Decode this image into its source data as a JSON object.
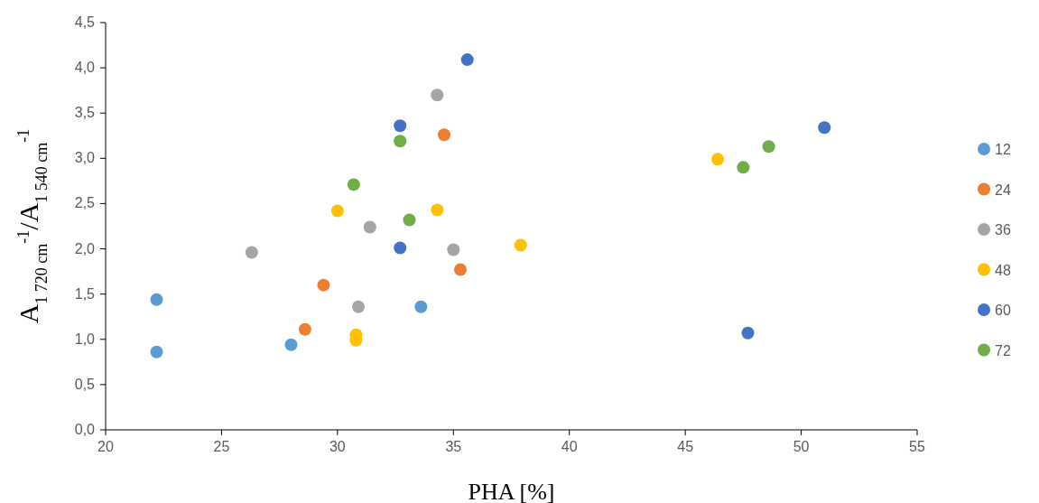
{
  "chart_data": {
    "type": "scatter",
    "xlabel": "PHA [%]",
    "ylabel": "A$_{1 720 cm}$$^{-1}$/A$_{1 540 cm}$$^{-1}$",
    "xlim": [
      20,
      55
    ],
    "xticks": [
      20,
      25,
      30,
      35,
      40,
      45,
      50,
      55
    ],
    "ylim": [
      0,
      4.5
    ],
    "yticks": [
      {
        "value": 0,
        "label": "0,0"
      },
      {
        "value": 0.5,
        "label": "0,5"
      },
      {
        "value": 1,
        "label": "1,0"
      },
      {
        "value": 1.5,
        "label": "1,5"
      },
      {
        "value": 2,
        "label": "2,0"
      },
      {
        "value": 2.5,
        "label": "2,5"
      },
      {
        "value": 3,
        "label": "3,0"
      },
      {
        "value": 3.5,
        "label": "3,5"
      },
      {
        "value": 4,
        "label": "4,0"
      },
      {
        "value": 4.5,
        "label": "4,5"
      }
    ],
    "grid": false,
    "legend": "right",
    "marker": "circle",
    "series": [
      {
        "name": "12",
        "color": "#5b9bd5",
        "x": [
          22.2,
          22.2,
          28.0,
          33.6
        ],
        "values": [
          1.44,
          0.86,
          0.94,
          1.36
        ]
      },
      {
        "name": "24",
        "color": "#ed7d31",
        "x": [
          28.6,
          29.4,
          34.6,
          35.3
        ],
        "values": [
          1.11,
          1.6,
          3.26,
          1.77
        ]
      },
      {
        "name": "36",
        "color": "#a5a5a5",
        "x": [
          26.3,
          30.9,
          31.4,
          34.3,
          35.0
        ],
        "values": [
          1.96,
          1.36,
          2.24,
          3.7,
          1.99
        ]
      },
      {
        "name": "48",
        "color": "#ffc000",
        "x": [
          30.0,
          30.8,
          30.8,
          34.3,
          37.9,
          46.4
        ],
        "values": [
          2.42,
          1.05,
          0.99,
          2.43,
          2.04,
          2.99
        ]
      },
      {
        "name": "60",
        "color": "#4472c4",
        "x": [
          32.7,
          32.7,
          35.6,
          47.7,
          51.0
        ],
        "values": [
          3.36,
          2.01,
          4.09,
          1.07,
          3.34
        ]
      },
      {
        "name": "72",
        "color": "#70ad47",
        "x": [
          30.7,
          32.7,
          33.1,
          47.5,
          48.6
        ],
        "values": [
          2.71,
          3.19,
          2.32,
          2.9,
          3.13
        ]
      }
    ]
  }
}
